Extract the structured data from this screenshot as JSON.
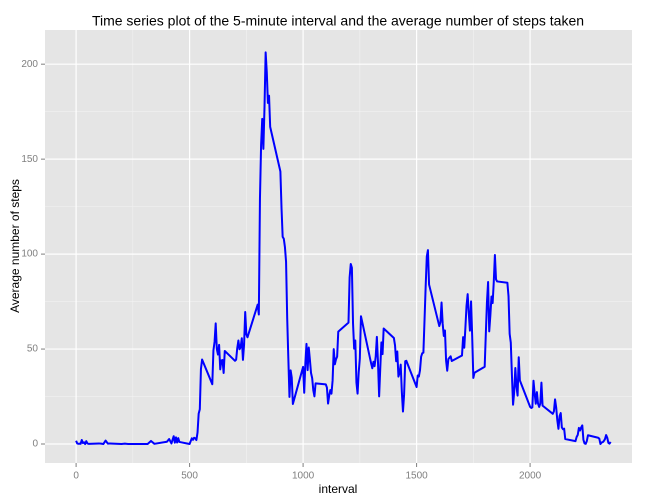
{
  "chart_data": {
    "type": "line",
    "title": "Time series plot of the 5-minute interval and the average number of steps taken",
    "x_label": "interval",
    "y_label": "Average number of steps",
    "xlim": [
      -137,
      2449
    ],
    "ylim": [
      -10,
      218
    ],
    "xticks": [
      0,
      500,
      1000,
      1500,
      2000
    ],
    "yticks": [
      0,
      50,
      100,
      150,
      200
    ],
    "grid": true,
    "minor_grid": true,
    "series": [
      {
        "name": "steps",
        "color": "#0000ff",
        "x": [
          0,
          5,
          10,
          15,
          20,
          25,
          30,
          35,
          40,
          45,
          50,
          55,
          100,
          110,
          120,
          130,
          140,
          150,
          200,
          215,
          230,
          245,
          300,
          315,
          330,
          345,
          400,
          410,
          420,
          430,
          435,
          440,
          445,
          450,
          455,
          500,
          505,
          510,
          515,
          520,
          525,
          530,
          535,
          540,
          545,
          550,
          555,
          600,
          605,
          610,
          615,
          620,
          625,
          630,
          635,
          640,
          645,
          650,
          655,
          700,
          705,
          710,
          715,
          720,
          725,
          730,
          735,
          740,
          745,
          750,
          755,
          800,
          805,
          810,
          815,
          820,
          825,
          830,
          835,
          840,
          845,
          850,
          855,
          900,
          905,
          910,
          915,
          920,
          925,
          930,
          935,
          940,
          945,
          950,
          955,
          1000,
          1005,
          1010,
          1015,
          1020,
          1025,
          1030,
          1035,
          1040,
          1045,
          1050,
          1055,
          1100,
          1105,
          1110,
          1115,
          1120,
          1125,
          1130,
          1135,
          1140,
          1145,
          1150,
          1155,
          1200,
          1205,
          1210,
          1215,
          1220,
          1225,
          1230,
          1235,
          1240,
          1245,
          1250,
          1255,
          1300,
          1305,
          1310,
          1315,
          1320,
          1325,
          1330,
          1335,
          1340,
          1345,
          1350,
          1355,
          1400,
          1405,
          1410,
          1415,
          1420,
          1425,
          1430,
          1435,
          1440,
          1445,
          1450,
          1455,
          1500,
          1505,
          1510,
          1515,
          1520,
          1525,
          1530,
          1535,
          1540,
          1545,
          1550,
          1555,
          1600,
          1605,
          1610,
          1615,
          1620,
          1625,
          1630,
          1635,
          1640,
          1645,
          1650,
          1655,
          1700,
          1705,
          1710,
          1715,
          1720,
          1725,
          1730,
          1735,
          1740,
          1745,
          1750,
          1755,
          1800,
          1805,
          1810,
          1815,
          1820,
          1825,
          1830,
          1835,
          1840,
          1845,
          1850,
          1855,
          1900,
          1905,
          1910,
          1915,
          1920,
          1925,
          1930,
          1935,
          1940,
          1945,
          1950,
          1955,
          2000,
          2005,
          2010,
          2015,
          2020,
          2025,
          2030,
          2035,
          2040,
          2045,
          2050,
          2055,
          2100,
          2105,
          2110,
          2115,
          2120,
          2125,
          2130,
          2135,
          2140,
          2145,
          2150,
          2155,
          2200,
          2205,
          2210,
          2215,
          2220,
          2225,
          2230,
          2235,
          2240,
          2245,
          2250,
          2255,
          2300,
          2305,
          2310,
          2315,
          2320,
          2325,
          2330,
          2335,
          2340,
          2345,
          2350,
          2355
        ],
        "values": [
          1.7,
          0.3,
          0.1,
          0.2,
          0.1,
          2.1,
          0.5,
          0.9,
          0,
          1.5,
          0.3,
          0.1,
          0.3,
          0.2,
          0,
          1.8,
          0.2,
          0.3,
          0,
          0.2,
          0,
          0,
          0,
          0,
          1.6,
          0.1,
          1.2,
          2.6,
          0.3,
          4.1,
          0.7,
          3.5,
          0.8,
          3.1,
          1.1,
          0,
          1.6,
          3,
          2.2,
          3.3,
          3,
          2.1,
          6.1,
          16,
          18.3,
          39.5,
          44.5,
          31.5,
          49.3,
          53.8,
          63.5,
          50,
          47.1,
          52.2,
          39.3,
          44,
          44.2,
          37.4,
          49,
          43.8,
          44.4,
          50.5,
          54.5,
          49.9,
          51,
          55.7,
          44.3,
          52.3,
          69.5,
          57.8,
          56.2,
          73.4,
          68.2,
          129.4,
          157.5,
          171.2,
          155.4,
          177.3,
          206.2,
          195.9,
          179.6,
          183.4,
          167,
          143.5,
          124,
          109.1,
          108.1,
          103.7,
          95.97,
          66.2,
          45.2,
          24.8,
          38.8,
          34.98,
          21.1,
          40.6,
          26.98,
          42.4,
          52.7,
          38.9,
          50.8,
          44.3,
          37.4,
          34.7,
          28.3,
          25.1,
          31.9,
          31.4,
          29.7,
          21.3,
          25.5,
          28.4,
          26.5,
          33.4,
          49.98,
          42,
          44.6,
          46,
          59.2,
          63.9,
          87.7,
          94.8,
          92.8,
          63.4,
          50.2,
          54.5,
          32.4,
          26.5,
          37.7,
          45.1,
          67.3,
          42.3,
          39.9,
          43.3,
          40.98,
          46.2,
          56.4,
          42.8,
          25.1,
          39.97,
          53.5,
          47.3,
          60.8,
          55.8,
          51.96,
          43.6,
          48.7,
          35.5,
          37.5,
          41.8,
          27.5,
          17.1,
          26.1,
          43.6,
          43.8,
          30,
          36.1,
          35.5,
          38.8,
          45.96,
          47.8,
          48.1,
          65.3,
          82.9,
          98.7,
          102.1,
          83.96,
          62.1,
          64.1,
          74.5,
          63.2,
          56.9,
          59.8,
          43.9,
          38.6,
          44.7,
          45.5,
          46.2,
          43.7,
          46.6,
          56.3,
          50.7,
          61.2,
          72.7,
          78.9,
          68.9,
          59.7,
          75.1,
          56.5,
          34.8,
          37.5,
          40.7,
          58,
          74.7,
          85.3,
          59.3,
          67.8,
          77.7,
          74.2,
          85.3,
          99.5,
          86.6,
          85.6,
          84.9,
          77.8,
          58,
          53.4,
          36.3,
          20.7,
          27.4,
          40,
          30.2,
          25.5,
          45.7,
          33.5,
          19.6,
          19,
          19.3,
          33.3,
          26.8,
          21.2,
          27.3,
          21.3,
          19.5,
          21.3,
          32.3,
          20.2,
          15.9,
          17.2,
          23.5,
          19.2,
          12.5,
          8,
          14.7,
          16.3,
          8.7,
          7.8,
          8.1,
          2.6,
          1.5,
          3.7,
          4.8,
          8.5,
          7.1,
          8.7,
          9.8,
          2.2,
          0.3,
          0.1,
          1.6,
          4.6,
          3.3,
          2.8,
          0,
          0.8,
          0.96,
          1.6,
          2.6,
          4.7,
          3.3,
          0.6,
          0.2,
          1.1
        ]
      }
    ]
  }
}
